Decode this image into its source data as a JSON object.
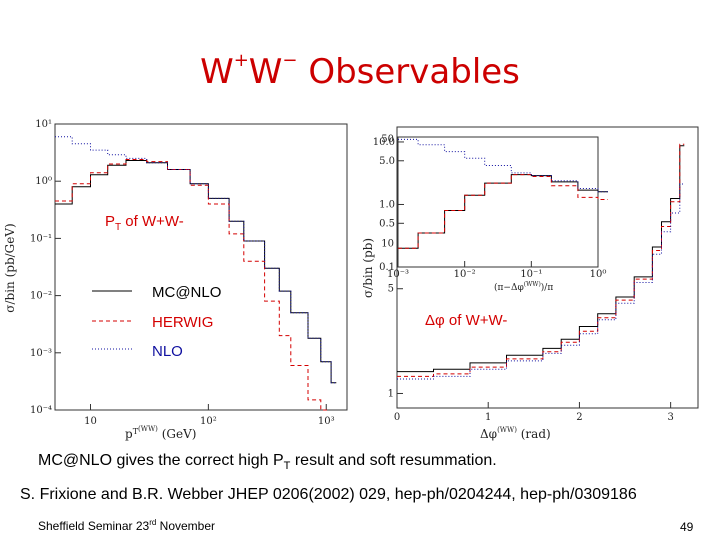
{
  "slide": {
    "title_main": "W",
    "title_sup1": "+",
    "title_w2": "W",
    "title_sup2": "−",
    "title_rest": " Observables",
    "summary_pre": "MC@NLO gives the correct high P",
    "summary_sub": "T",
    "summary_post": " result and soft resummation.",
    "reference": "S. Frixione and B.R. Webber JHEP 0206(2002) 029, hep-ph/0204244, hep-ph/0309186",
    "footer_pre": "Sheffield Seminar 23",
    "footer_sup": "rd",
    "footer_post": " November",
    "page_number": "49"
  },
  "chart_data": [
    {
      "type": "line",
      "annotation_pre": "P",
      "annotation_sub": "T",
      "annotation_post": " of W+W-",
      "xlabel": "p_T^(WW) (GeV)",
      "ylabel": "σ/bin (pb/GeV)",
      "xscale": "log",
      "yscale": "log",
      "xlim": [
        5,
        1500
      ],
      "ylim": [
        0.0001,
        10
      ],
      "x_ticks": [
        "10",
        "10²",
        "10³"
      ],
      "y_ticks": [
        "10¹",
        "10⁰",
        "10⁻¹",
        "10⁻²",
        "10⁻³",
        "10⁻⁴"
      ],
      "legend": [
        "MC@NLO",
        "HERWIG",
        "NLO"
      ],
      "series": [
        {
          "name": "MC@NLO",
          "style": "solid",
          "color": "#000000",
          "x": [
            5,
            7,
            10,
            14,
            20,
            30,
            45,
            70,
            100,
            150,
            200,
            300,
            400,
            500,
            700,
            900,
            1100
          ],
          "y": [
            0.4,
            0.8,
            1.3,
            1.9,
            2.3,
            2.1,
            1.6,
            0.9,
            0.5,
            0.2,
            0.09,
            0.03,
            0.012,
            0.005,
            0.0018,
            0.0007,
            0.0003
          ]
        },
        {
          "name": "HERWIG",
          "style": "dashed",
          "color": "#d40000",
          "x": [
            5,
            7,
            10,
            14,
            20,
            30,
            45,
            70,
            100,
            150,
            200,
            300,
            400,
            500,
            700,
            900
          ],
          "y": [
            0.45,
            0.9,
            1.4,
            2.0,
            2.4,
            2.2,
            1.6,
            0.85,
            0.4,
            0.12,
            0.04,
            0.008,
            0.002,
            0.0006,
            0.00015,
            0.0001
          ]
        },
        {
          "name": "NLO",
          "style": "dotted",
          "color": "#1010a0",
          "x": [
            5,
            7,
            10,
            14,
            20,
            30,
            45,
            70,
            100,
            150,
            200,
            300,
            400,
            500,
            700,
            900,
            1100
          ],
          "y": [
            6.0,
            4.5,
            3.5,
            2.9,
            2.5,
            2.1,
            1.6,
            0.9,
            0.5,
            0.2,
            0.09,
            0.03,
            0.012,
            0.005,
            0.0018,
            0.0007,
            0.0003
          ]
        }
      ]
    },
    {
      "type": "line",
      "annotation": "Δφ of W+W-",
      "xlabel": "Δφ^(WW) (rad)",
      "ylabel": "σ/bin (pb)",
      "yscale": "log",
      "xlim": [
        0,
        3.3
      ],
      "ylim": [
        0.8,
        60
      ],
      "x_ticks": [
        "0",
        "1",
        "2",
        "3"
      ],
      "y_ticks": [
        "50",
        "10",
        "5",
        "1"
      ],
      "series": [
        {
          "name": "MC@NLO",
          "style": "solid",
          "color": "#000000",
          "x": [
            0,
            0.4,
            0.8,
            1.2,
            1.6,
            1.8,
            2.0,
            2.2,
            2.4,
            2.6,
            2.8,
            2.9,
            3.0,
            3.1
          ],
          "y": [
            1.4,
            1.45,
            1.6,
            1.8,
            2.0,
            2.3,
            2.8,
            3.4,
            4.4,
            6.0,
            9.5,
            14,
            20,
            45
          ]
        },
        {
          "name": "HERWIG",
          "style": "dashed",
          "color": "#d40000",
          "x": [
            0,
            0.4,
            0.8,
            1.2,
            1.6,
            1.8,
            2.0,
            2.2,
            2.4,
            2.6,
            2.8,
            2.9,
            3.0,
            3.1
          ],
          "y": [
            1.3,
            1.35,
            1.5,
            1.7,
            1.9,
            2.2,
            2.6,
            3.2,
            4.2,
            5.8,
            9.0,
            13,
            19,
            46
          ]
        },
        {
          "name": "NLO",
          "style": "dotted",
          "color": "#1010a0",
          "x": [
            0,
            0.4,
            0.8,
            1.2,
            1.6,
            1.8,
            2.0,
            2.2,
            2.4,
            2.6,
            2.8,
            2.9,
            3.0,
            3.1
          ],
          "y": [
            1.25,
            1.3,
            1.45,
            1.65,
            1.85,
            2.1,
            2.5,
            3.1,
            4.0,
            5.5,
            8.5,
            12,
            16,
            25
          ]
        }
      ],
      "inset": {
        "xlabel": "(π-Δφ^(WW))/π",
        "xscale": "log",
        "yscale": "log",
        "xlim": [
          0.001,
          1
        ],
        "ylim": [
          0.1,
          12
        ],
        "x_ticks": [
          "10⁻³",
          "10⁻²",
          "10⁻¹",
          "10⁰"
        ],
        "y_ticks": [
          "10.0",
          "5.0",
          "1.0",
          "0.5",
          "0.1"
        ],
        "series": [
          {
            "name": "MC@NLO",
            "style": "solid",
            "color": "#000000",
            "x": [
              0.001,
              0.002,
              0.005,
              0.01,
              0.02,
              0.05,
              0.1,
              0.2,
              0.5,
              1
            ],
            "y": [
              0.2,
              0.35,
              0.8,
              1.4,
              2.2,
              3.0,
              2.9,
              2.3,
              1.7,
              1.6
            ]
          },
          {
            "name": "HERWIG",
            "style": "dashed",
            "color": "#d40000",
            "x": [
              0.001,
              0.002,
              0.005,
              0.01,
              0.02,
              0.05,
              0.1,
              0.2,
              0.5,
              1
            ],
            "y": [
              0.2,
              0.35,
              0.8,
              1.4,
              2.2,
              3.0,
              2.8,
              2.0,
              1.3,
              1.2
            ]
          },
          {
            "name": "NLO",
            "style": "dotted",
            "color": "#1010a0",
            "x": [
              0.001,
              0.002,
              0.005,
              0.01,
              0.02,
              0.05,
              0.1,
              0.2,
              0.5,
              1
            ],
            "y": [
              11,
              9,
              7,
              5.5,
              4.2,
              3.2,
              2.9,
              2.4,
              1.8,
              1.6
            ]
          }
        ]
      }
    }
  ]
}
